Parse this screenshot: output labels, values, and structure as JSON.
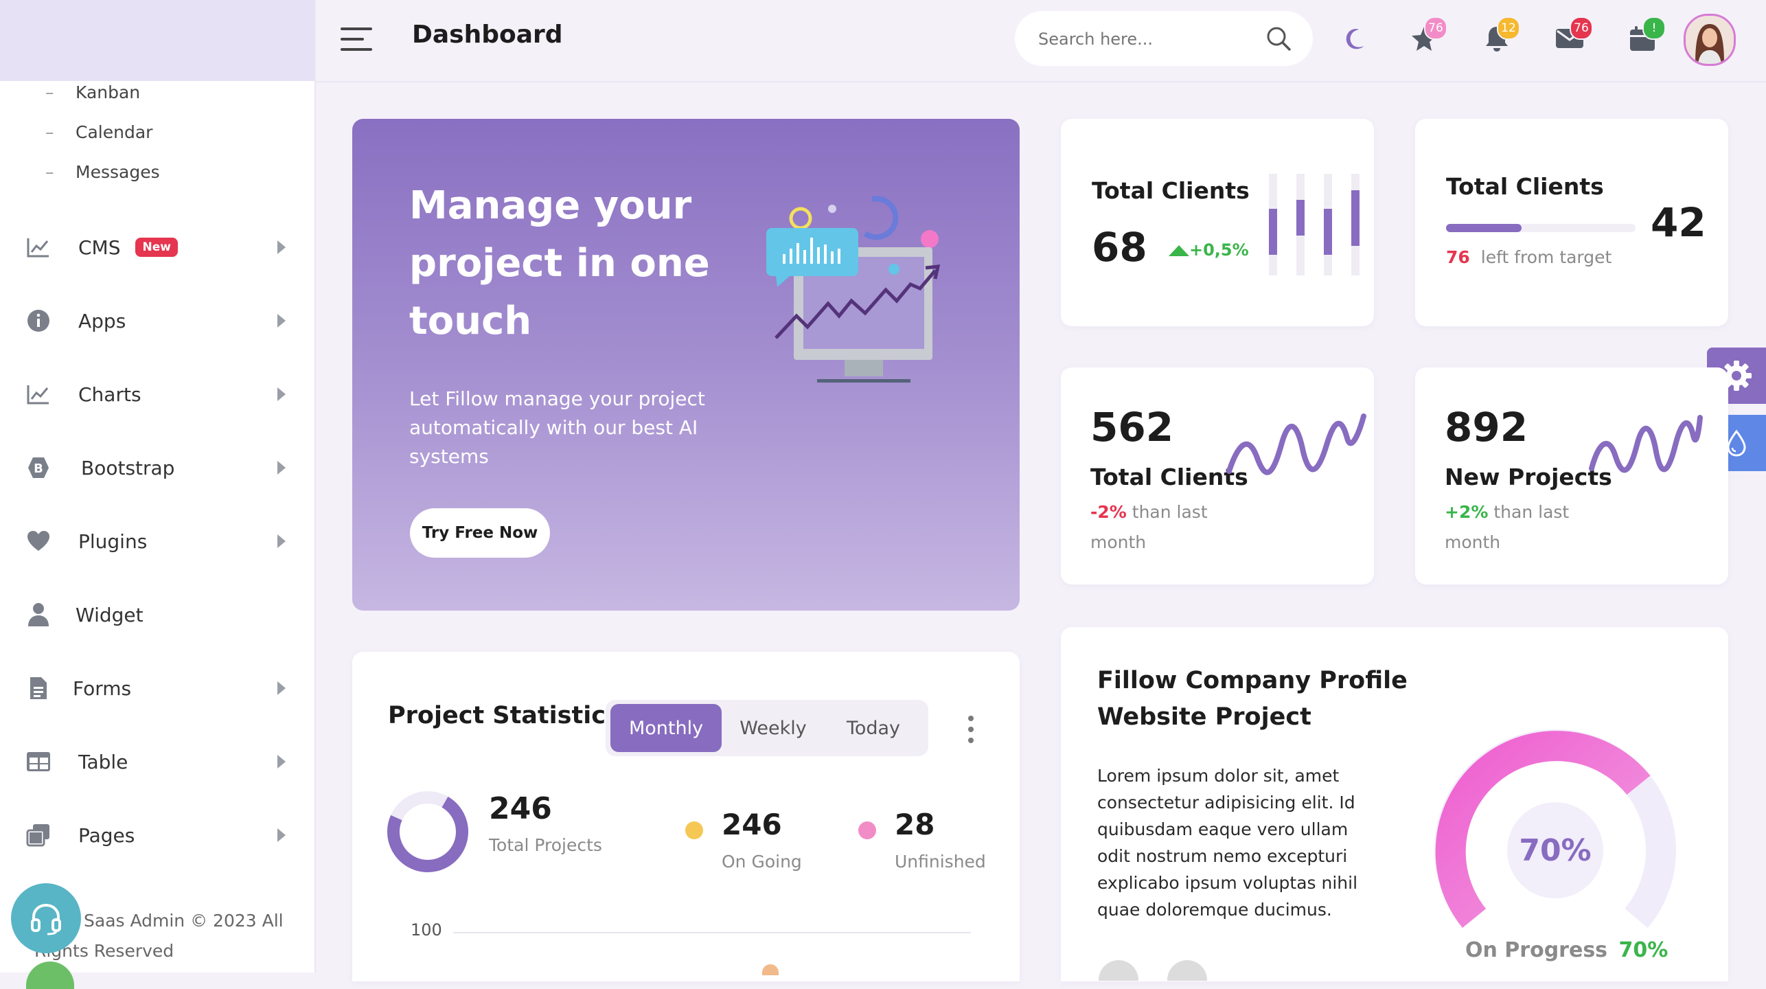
{
  "header": {
    "title": "Dashboard",
    "search_placeholder": "Search here...",
    "badges": {
      "star": "76",
      "bell": "12",
      "mail": "76",
      "calendar": "!"
    }
  },
  "sidebar": {
    "sub_items": [
      "Kanban",
      "Calendar",
      "Messages"
    ],
    "items": [
      {
        "label": "CMS",
        "icon": "chart-line-icon",
        "badge": "New"
      },
      {
        "label": "Apps",
        "icon": "info-icon"
      },
      {
        "label": "Charts",
        "icon": "chart-line-icon"
      },
      {
        "label": "Bootstrap",
        "icon": "bootstrap-icon"
      },
      {
        "label": "Plugins",
        "icon": "heart-icon"
      },
      {
        "label": "Widget",
        "icon": "user-icon"
      },
      {
        "label": "Forms",
        "icon": "document-icon"
      },
      {
        "label": "Table",
        "icon": "table-icon"
      },
      {
        "label": "Pages",
        "icon": "pages-icon"
      }
    ],
    "footer_line1": "Saas Admin © 2023 All",
    "footer_line2": "Rights Reserved"
  },
  "hero": {
    "title_line1": "Manage your",
    "title_line2": "project in one",
    "title_line3": "touch",
    "desc_line1": "Let Fillow manage your project",
    "desc_line2": "automatically with our best AI",
    "desc_line3": "systems",
    "button": "Try Free Now"
  },
  "stat1": {
    "title": "Total Clients",
    "value": "68",
    "change": "+0,5%",
    "bars": [
      0.45,
      0.35,
      0.45,
      0.55
    ]
  },
  "stat2": {
    "title": "Total Clients",
    "value": "42",
    "remaining": "76",
    "remaining_text": "left from target",
    "progress": 0.4
  },
  "stat3": {
    "value": "562",
    "label": "Total Clients",
    "change": "-2%",
    "change_text_1": "than last",
    "change_text_2": "month"
  },
  "stat4": {
    "value": "892",
    "label": "New Projects",
    "change": "+2%",
    "change_text_1": "than last",
    "change_text_2": "month"
  },
  "project_stats": {
    "title": "Project Statistics",
    "tabs": [
      "Monthly",
      "Weekly",
      "Today"
    ],
    "active_tab": "Monthly",
    "total_value": "246",
    "total_label": "Total Projects",
    "ongoing_value": "246",
    "ongoing_label": "On Going",
    "unfinished_value": "28",
    "unfinished_label": "Unfinished",
    "axis_tick": "100",
    "colors": {
      "ongoing": "#f5c755",
      "unfinished": "#f28cc7",
      "accent": "#886cc0"
    }
  },
  "company": {
    "title_line1": "Fillow Company Profile",
    "title_line2": "Website Project",
    "desc_lines": [
      "Lorem ipsum dolor sit, amet",
      "consectetur adipisicing elit. Id",
      "quibusdam eaque vero ullam",
      "odit nostrum nemo excepturi",
      "explicabo ipsum voluptas nihil",
      "quae doloremque ducimus."
    ],
    "gauge_value": "70%",
    "gauge_fraction": 0.7,
    "progress_label": "On Progress",
    "progress_value": "70%"
  },
  "colors": {
    "primary": "#886cc0",
    "danger": "#e5354f",
    "success": "#3ab54a",
    "pink": "#ef6fd8"
  }
}
